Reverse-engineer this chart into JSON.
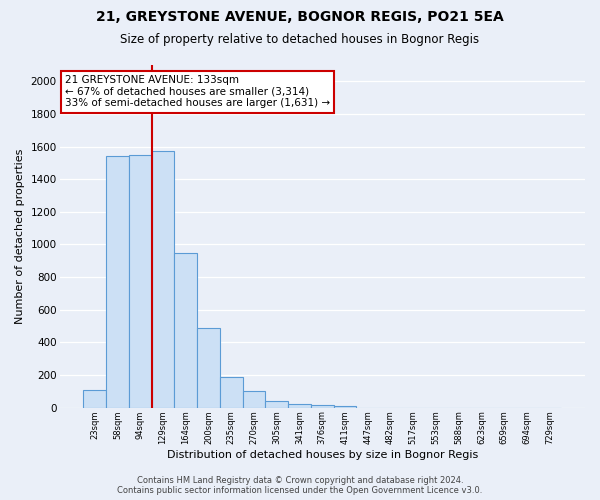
{
  "title1": "21, GREYSTONE AVENUE, BOGNOR REGIS, PO21 5EA",
  "title2": "Size of property relative to detached houses in Bognor Regis",
  "xlabel": "Distribution of detached houses by size in Bognor Regis",
  "ylabel": "Number of detached properties",
  "categories": [
    "23sqm",
    "58sqm",
    "94sqm",
    "129sqm",
    "164sqm",
    "200sqm",
    "235sqm",
    "270sqm",
    "305sqm",
    "341sqm",
    "376sqm",
    "411sqm",
    "447sqm",
    "482sqm",
    "517sqm",
    "553sqm",
    "588sqm",
    "623sqm",
    "659sqm",
    "694sqm",
    "729sqm"
  ],
  "values": [
    110,
    1540,
    1550,
    1570,
    950,
    490,
    185,
    100,
    40,
    25,
    15,
    10,
    0,
    0,
    0,
    0,
    0,
    0,
    0,
    0,
    0
  ],
  "bar_color": "#cce0f5",
  "bar_edge_color": "#5b9bd5",
  "bg_color": "#eaeff8",
  "fig_color": "#eaeff8",
  "grid_color": "#ffffff",
  "vline_x": 2.5,
  "vline_color": "#cc0000",
  "annotation_title": "21 GREYSTONE AVENUE: 133sqm",
  "annotation_line1": "← 67% of detached houses are smaller (3,314)",
  "annotation_line2": "33% of semi-detached houses are larger (1,631) →",
  "annotation_box_color": "#ffffff",
  "annotation_border_color": "#cc0000",
  "footer1": "Contains HM Land Registry data © Crown copyright and database right 2024.",
  "footer2": "Contains public sector information licensed under the Open Government Licence v3.0.",
  "ylim": [
    0,
    2100
  ],
  "yticks": [
    0,
    200,
    400,
    600,
    800,
    1000,
    1200,
    1400,
    1600,
    1800,
    2000
  ]
}
